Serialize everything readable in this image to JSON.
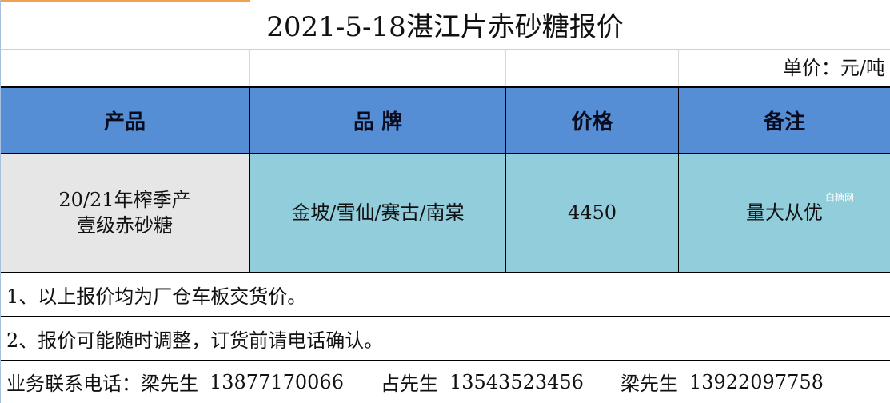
{
  "title": "2021-5-18湛江片赤砂糖报价",
  "unit": "单价：元/吨",
  "headers": [
    "产品",
    "品  牌",
    "价格",
    "备注"
  ],
  "row": {
    "product_line1": "20/21年榨季产",
    "product_line2": "壹级赤砂糖",
    "brand": "金坡/雪仙/赛古/南棠",
    "price": "4450",
    "remark": "量大从优"
  },
  "notes": [
    "1、以上报价均为厂仓车板交货价。",
    "2、报价可能随时调整，订货前请电话确认。"
  ],
  "contact": {
    "label": "业务联系电话：",
    "people": [
      {
        "name": "梁先生",
        "phone": "13877170066"
      },
      {
        "name": "占先生",
        "phone": "13543523456"
      },
      {
        "name": "梁先生",
        "phone": "13922097758"
      }
    ]
  },
  "watermark": "白糖网",
  "colors": {
    "header": "#558ed5",
    "product_cell": "#e6e6e6",
    "data_cell": "#92cddc"
  }
}
